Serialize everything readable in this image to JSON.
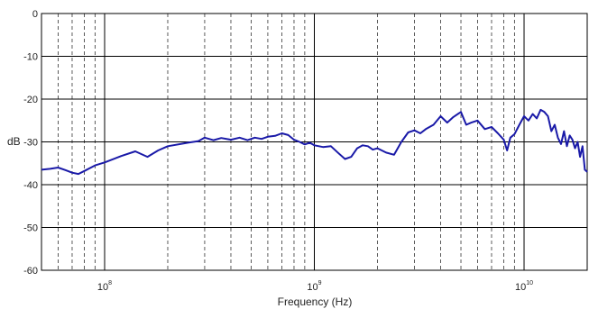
{
  "chart_data": {
    "type": "line",
    "title": "",
    "xlabel": "Frequency (Hz)",
    "ylabel": "dB",
    "xscale": "log",
    "xlim": [
      50000000,
      20000000000
    ],
    "ylim": [
      -60,
      0
    ],
    "grid": {
      "major": "solid",
      "minor": "dashed"
    },
    "x_tick_labels": [
      {
        "value": 100000000,
        "base": "10",
        "exp": "8"
      },
      {
        "value": 1000000000,
        "base": "10",
        "exp": "9"
      },
      {
        "value": 10000000000,
        "base": "10",
        "exp": "10"
      }
    ],
    "y_ticks": [
      0,
      -10,
      -20,
      -30,
      -40,
      -50,
      -60
    ],
    "y_tick_labels": [
      "0",
      "-10",
      "-20",
      "-30",
      "-40",
      "-50",
      "-60"
    ],
    "line_color": "#1a1aa8",
    "series": [
      {
        "x": [
          50000000,
          55000000,
          60000000,
          65000000,
          70000000,
          75000000,
          80000000,
          90000000,
          100000000,
          120000000,
          140000000,
          160000000,
          180000000,
          200000000,
          250000000,
          280000000,
          300000000,
          330000000,
          360000000,
          400000000,
          440000000,
          480000000,
          520000000,
          560000000,
          600000000,
          650000000,
          700000000,
          750000000,
          800000000,
          850000000,
          900000000,
          950000000,
          1000000000,
          1100000000,
          1200000000,
          1300000000,
          1400000000,
          1500000000,
          1600000000,
          1700000000,
          1800000000,
          1900000000,
          2000000000,
          2200000000,
          2400000000,
          2600000000,
          2800000000,
          3000000000,
          3200000000,
          3400000000,
          3700000000,
          4000000000,
          4300000000,
          4600000000,
          5000000000,
          5300000000,
          5600000000,
          6000000000,
          6500000000,
          7000000000,
          7500000000,
          8000000000,
          8300000000,
          8600000000,
          9000000000,
          9500000000,
          10000000000,
          10500000000,
          11000000000,
          11500000000,
          12000000000,
          12500000000,
          13000000000,
          13500000000,
          14000000000,
          14500000000,
          15000000000,
          15500000000,
          16000000000,
          16500000000,
          17000000000,
          17500000000,
          18000000000,
          18500000000,
          19000000000,
          19500000000,
          20000000000
        ],
        "y": [
          -36.5,
          -36.3,
          -36.0,
          -36.6,
          -37.2,
          -37.5,
          -36.8,
          -35.5,
          -34.8,
          -33.3,
          -32.2,
          -33.5,
          -32.0,
          -31.0,
          -30.2,
          -29.8,
          -29.0,
          -29.6,
          -29.1,
          -29.5,
          -29.0,
          -29.6,
          -29.0,
          -29.3,
          -28.8,
          -28.6,
          -28.0,
          -28.4,
          -29.5,
          -30.0,
          -30.6,
          -30.2,
          -30.8,
          -31.2,
          -31.0,
          -32.6,
          -34.0,
          -33.5,
          -31.5,
          -30.8,
          -31.0,
          -31.8,
          -31.5,
          -32.5,
          -33.0,
          -30.0,
          -27.8,
          -27.3,
          -28.0,
          -27.0,
          -26.0,
          -24.0,
          -25.5,
          -24.2,
          -23.0,
          -26.0,
          -25.5,
          -25.0,
          -27.0,
          -26.5,
          -28.0,
          -29.5,
          -32.0,
          -29.0,
          -28.2,
          -26.0,
          -24.0,
          -25.0,
          -23.5,
          -24.5,
          -22.5,
          -23.0,
          -24.0,
          -27.5,
          -26.0,
          -29.0,
          -30.5,
          -27.5,
          -31.0,
          -28.5,
          -29.5,
          -31.5,
          -30.0,
          -33.5,
          -31.0,
          -36.5,
          -37.0
        ]
      }
    ]
  }
}
